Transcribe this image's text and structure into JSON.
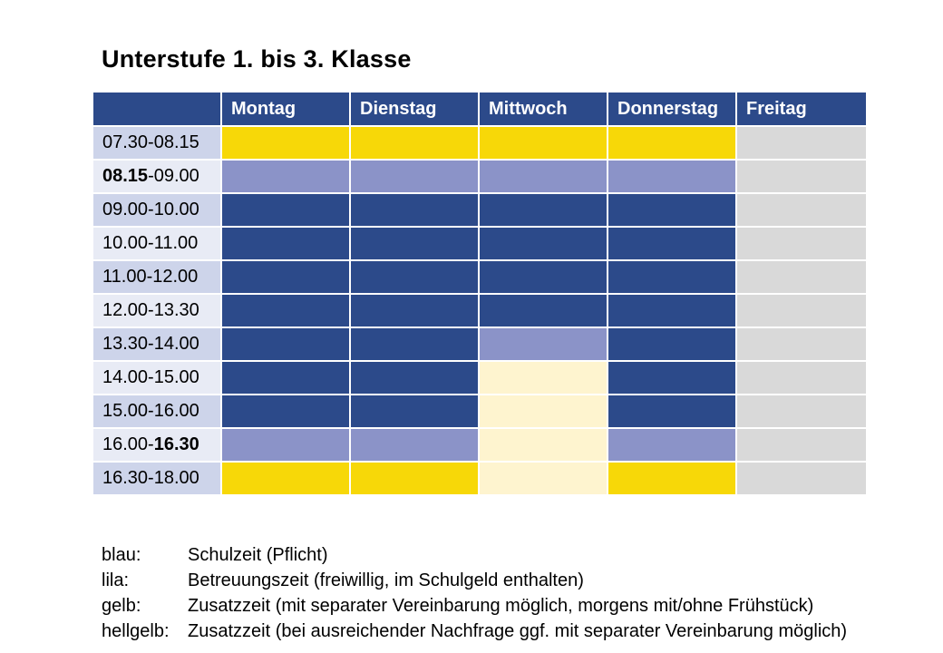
{
  "title": "Unterstufe 1. bis 3. Klasse",
  "colors": {
    "blau": "#2c4a8a",
    "lila": "#8b93c8",
    "gelb": "#f7d808",
    "hellgelb": "#fef4cf",
    "grau": "#d9d9d9"
  },
  "table": {
    "corner": "",
    "days": [
      "Montag",
      "Dienstag",
      "Mittwoch",
      "Donnerstag",
      "Freitag"
    ],
    "rows": [
      {
        "time_a": "07.30-08.15",
        "time_b": "",
        "bold_part": "",
        "cells": [
          "gelb",
          "gelb",
          "gelb",
          "gelb",
          "grau"
        ]
      },
      {
        "time_a": "",
        "bold_part": "08.15",
        "time_b": "-09.00",
        "cells": [
          "lila",
          "lila",
          "lila",
          "lila",
          "grau"
        ]
      },
      {
        "time_a": "09.00-10.00",
        "time_b": "",
        "bold_part": "",
        "cells": [
          "blau",
          "blau",
          "blau",
          "blau",
          "grau"
        ]
      },
      {
        "time_a": "10.00-11.00",
        "time_b": "",
        "bold_part": "",
        "cells": [
          "blau",
          "blau",
          "blau",
          "blau",
          "grau"
        ]
      },
      {
        "time_a": "11.00-12.00",
        "time_b": "",
        "bold_part": "",
        "cells": [
          "blau",
          "blau",
          "blau",
          "blau",
          "grau"
        ]
      },
      {
        "time_a": "12.00-13.30",
        "time_b": "",
        "bold_part": "",
        "cells": [
          "blau",
          "blau",
          "blau",
          "blau",
          "grau"
        ]
      },
      {
        "time_a": "13.30-14.00",
        "time_b": "",
        "bold_part": "",
        "cells": [
          "blau",
          "blau",
          "lila",
          "blau",
          "grau"
        ]
      },
      {
        "time_a": "14.00-15.00",
        "time_b": "",
        "bold_part": "",
        "cells": [
          "blau",
          "blau",
          "hellgelb",
          "blau",
          "grau"
        ]
      },
      {
        "time_a": "15.00-16.00",
        "time_b": "",
        "bold_part": "",
        "cells": [
          "blau",
          "blau",
          "hellgelb",
          "blau",
          "grau"
        ]
      },
      {
        "time_a": "16.00-",
        "bold_part": "16.30",
        "time_b": "",
        "cells": [
          "lila",
          "lila",
          "hellgelb",
          "lila",
          "grau"
        ]
      },
      {
        "time_a": "16.30-18.00",
        "time_b": "",
        "bold_part": "",
        "cells": [
          "gelb",
          "gelb",
          "hellgelb",
          "gelb",
          "grau"
        ]
      }
    ]
  },
  "legend": [
    {
      "key": "blau:",
      "text": "Schulzeit (Pflicht)"
    },
    {
      "key": "lila:",
      "text": "Betreuungszeit (freiwillig, im Schulgeld enthalten)"
    },
    {
      "key": "gelb:",
      "text": "Zusatzzeit (mit separater Vereinbarung möglich, morgens mit/ohne Frühstück)"
    },
    {
      "key": "hellgelb:",
      "text": "Zusatzzeit (bei ausreichender Nachfrage ggf. mit separater Vereinbarung möglich)"
    }
  ]
}
